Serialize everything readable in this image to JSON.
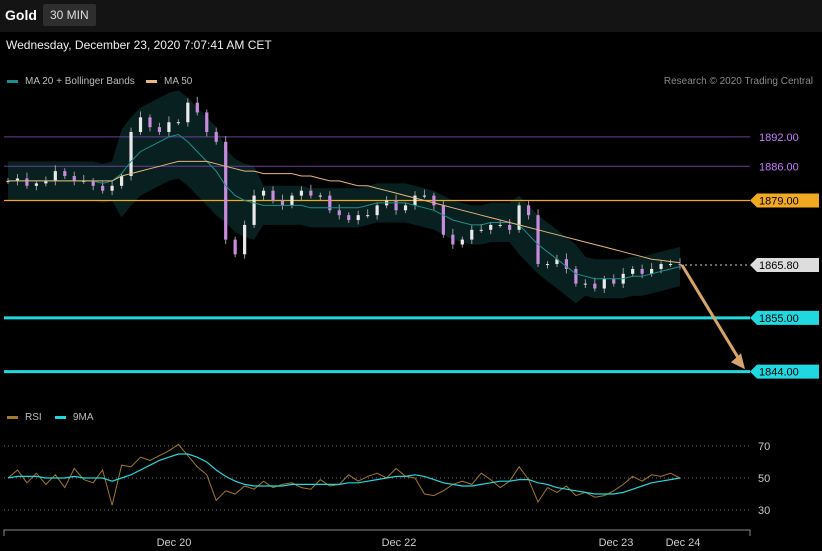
{
  "header": {
    "title": "Gold",
    "interval": "30 MIN"
  },
  "datetime": "Wednesday, December 23, 2020 7:07:41 AM CET",
  "legend": {
    "ma20": {
      "label": "MA 20 + Bollinger Bands",
      "color": "#1e8f8c"
    },
    "ma50": {
      "label": "MA 50",
      "color": "#e8b57c"
    },
    "rsi": {
      "label": "RSI",
      "color": "#a0782e"
    },
    "ma9": {
      "label": "9MA",
      "color": "#20d8e0"
    }
  },
  "credit": "Research © 2020 Trading Central",
  "chart_data": [
    {
      "type": "candlestick",
      "title": "Gold",
      "timeframe": "30 MIN",
      "x_labels": [
        "Dec 20",
        "Dec 22",
        "Dec 23",
        "Dec 24"
      ],
      "ylim": [
        1838,
        1902
      ],
      "levels": [
        {
          "label": "1892.00",
          "value": 1892.0,
          "kind": "resistance",
          "color": "#c77dff"
        },
        {
          "label": "1886.00",
          "value": 1886.0,
          "kind": "resistance",
          "color": "#c77dff"
        },
        {
          "label": "1879.00",
          "value": 1879.0,
          "kind": "pivot",
          "color": "#f0a920"
        },
        {
          "label": "1865.80",
          "value": 1865.8,
          "kind": "last",
          "color": "#dddddd"
        },
        {
          "label": "1855.00",
          "value": 1855.0,
          "kind": "support",
          "color": "#20d8e0"
        },
        {
          "label": "1844.00",
          "value": 1844.0,
          "kind": "support",
          "color": "#20d8e0"
        }
      ],
      "series": [
        {
          "name": "Price",
          "values": [
            1883,
            1883.5,
            1882,
            1882.5,
            1883,
            1885,
            1884,
            1883,
            1883,
            1882,
            1881,
            1882,
            1884,
            1893,
            1896,
            1894,
            1893,
            1895,
            1895,
            1899,
            1897,
            1893,
            1891,
            1871,
            1868,
            1874,
            1880,
            1881,
            1879,
            1878,
            1880,
            1881,
            1880,
            1880,
            1877,
            1876,
            1875,
            1876,
            1876,
            1878,
            1879,
            1877,
            1878,
            1880,
            1880,
            1878,
            1872,
            1870,
            1871,
            1873,
            1873,
            1874,
            1874,
            1873,
            1878,
            1876,
            1866,
            1866,
            1867,
            1865,
            1862,
            1862,
            1861,
            1863,
            1862,
            1864,
            1865,
            1864,
            1865,
            1866,
            1866,
            1865.8
          ]
        },
        {
          "name": "MA 20 + Bollinger Bands",
          "values": [
            1883,
            1883,
            1883,
            1883,
            1883,
            1883,
            1883,
            1883,
            1883,
            1883,
            1882.5,
            1883,
            1884.5,
            1887,
            1889,
            1890,
            1891,
            1892,
            1892.5,
            1891,
            1889,
            1887,
            1885,
            1882,
            1880,
            1879,
            1878.5,
            1878,
            1878,
            1878,
            1878,
            1878,
            1877.5,
            1877.5,
            1877.5,
            1877.5,
            1877.5,
            1877.5,
            1878,
            1878.5,
            1878.5,
            1878.5,
            1878.5,
            1878,
            1877.5,
            1877,
            1876,
            1875,
            1874.5,
            1874,
            1874,
            1874.5,
            1874.5,
            1874.5,
            1874,
            1872,
            1870,
            1868.5,
            1867,
            1865.5,
            1864,
            1863.5,
            1863,
            1863,
            1863,
            1863,
            1863.5,
            1863.5,
            1864,
            1864.5,
            1865,
            1865.5
          ]
        },
        {
          "name": "MA 50",
          "values": [
            1883,
            1883,
            1883,
            1883,
            1883,
            1883,
            1883,
            1883,
            1883,
            1883,
            1883,
            1883,
            1884,
            1884.5,
            1885,
            1885.5,
            1886,
            1886.5,
            1887,
            1887,
            1887,
            1887,
            1886.5,
            1886,
            1885.5,
            1885,
            1885,
            1884.5,
            1884.5,
            1884.5,
            1884.5,
            1884,
            1884,
            1883.5,
            1883,
            1883,
            1882.5,
            1882,
            1882,
            1881.5,
            1881,
            1880.5,
            1880,
            1879.5,
            1879,
            1878.5,
            1878,
            1877.5,
            1877,
            1876.5,
            1876,
            1875.5,
            1875,
            1874.5,
            1874,
            1873.5,
            1873,
            1872.5,
            1872,
            1871.5,
            1871,
            1870.5,
            1870,
            1869.5,
            1869,
            1868.5,
            1868,
            1867.5,
            1867,
            1866.8,
            1866.5,
            1866.3
          ]
        }
      ]
    },
    {
      "type": "line",
      "title": "RSI",
      "ylim": [
        25,
        75
      ],
      "y_ticks": [
        30,
        50,
        70
      ],
      "series": [
        {
          "name": "RSI",
          "values": [
            50,
            55,
            47,
            53,
            46,
            52,
            44,
            56,
            49,
            47,
            55,
            33,
            58,
            57,
            63,
            61,
            64,
            67,
            71,
            64,
            57,
            52,
            36,
            42,
            40,
            45,
            43,
            48,
            44,
            46,
            47,
            44,
            43,
            49,
            45,
            46,
            52,
            48,
            51,
            53,
            50,
            56,
            51,
            50,
            40,
            39,
            42,
            46,
            48,
            46,
            53,
            49,
            44,
            48,
            57,
            49,
            35,
            44,
            41,
            45,
            39,
            41,
            38,
            39,
            42,
            46,
            51,
            48,
            52,
            51,
            53,
            50
          ]
        },
        {
          "name": "9MA",
          "values": [
            50,
            51,
            51,
            51,
            50,
            50,
            50,
            51,
            50,
            50,
            50,
            48,
            50,
            52,
            55,
            58,
            61,
            63,
            65,
            65,
            63,
            60,
            55,
            51,
            48,
            46,
            45,
            45,
            45,
            45,
            46,
            46,
            46,
            46,
            46,
            46,
            47,
            47,
            48,
            49,
            50,
            51,
            51,
            52,
            51,
            49,
            47,
            46,
            45,
            45,
            46,
            47,
            48,
            48,
            49,
            49,
            47,
            46,
            44,
            43,
            42,
            41,
            40,
            40,
            40,
            41,
            43,
            45,
            47,
            48,
            49,
            50
          ]
        }
      ]
    }
  ]
}
